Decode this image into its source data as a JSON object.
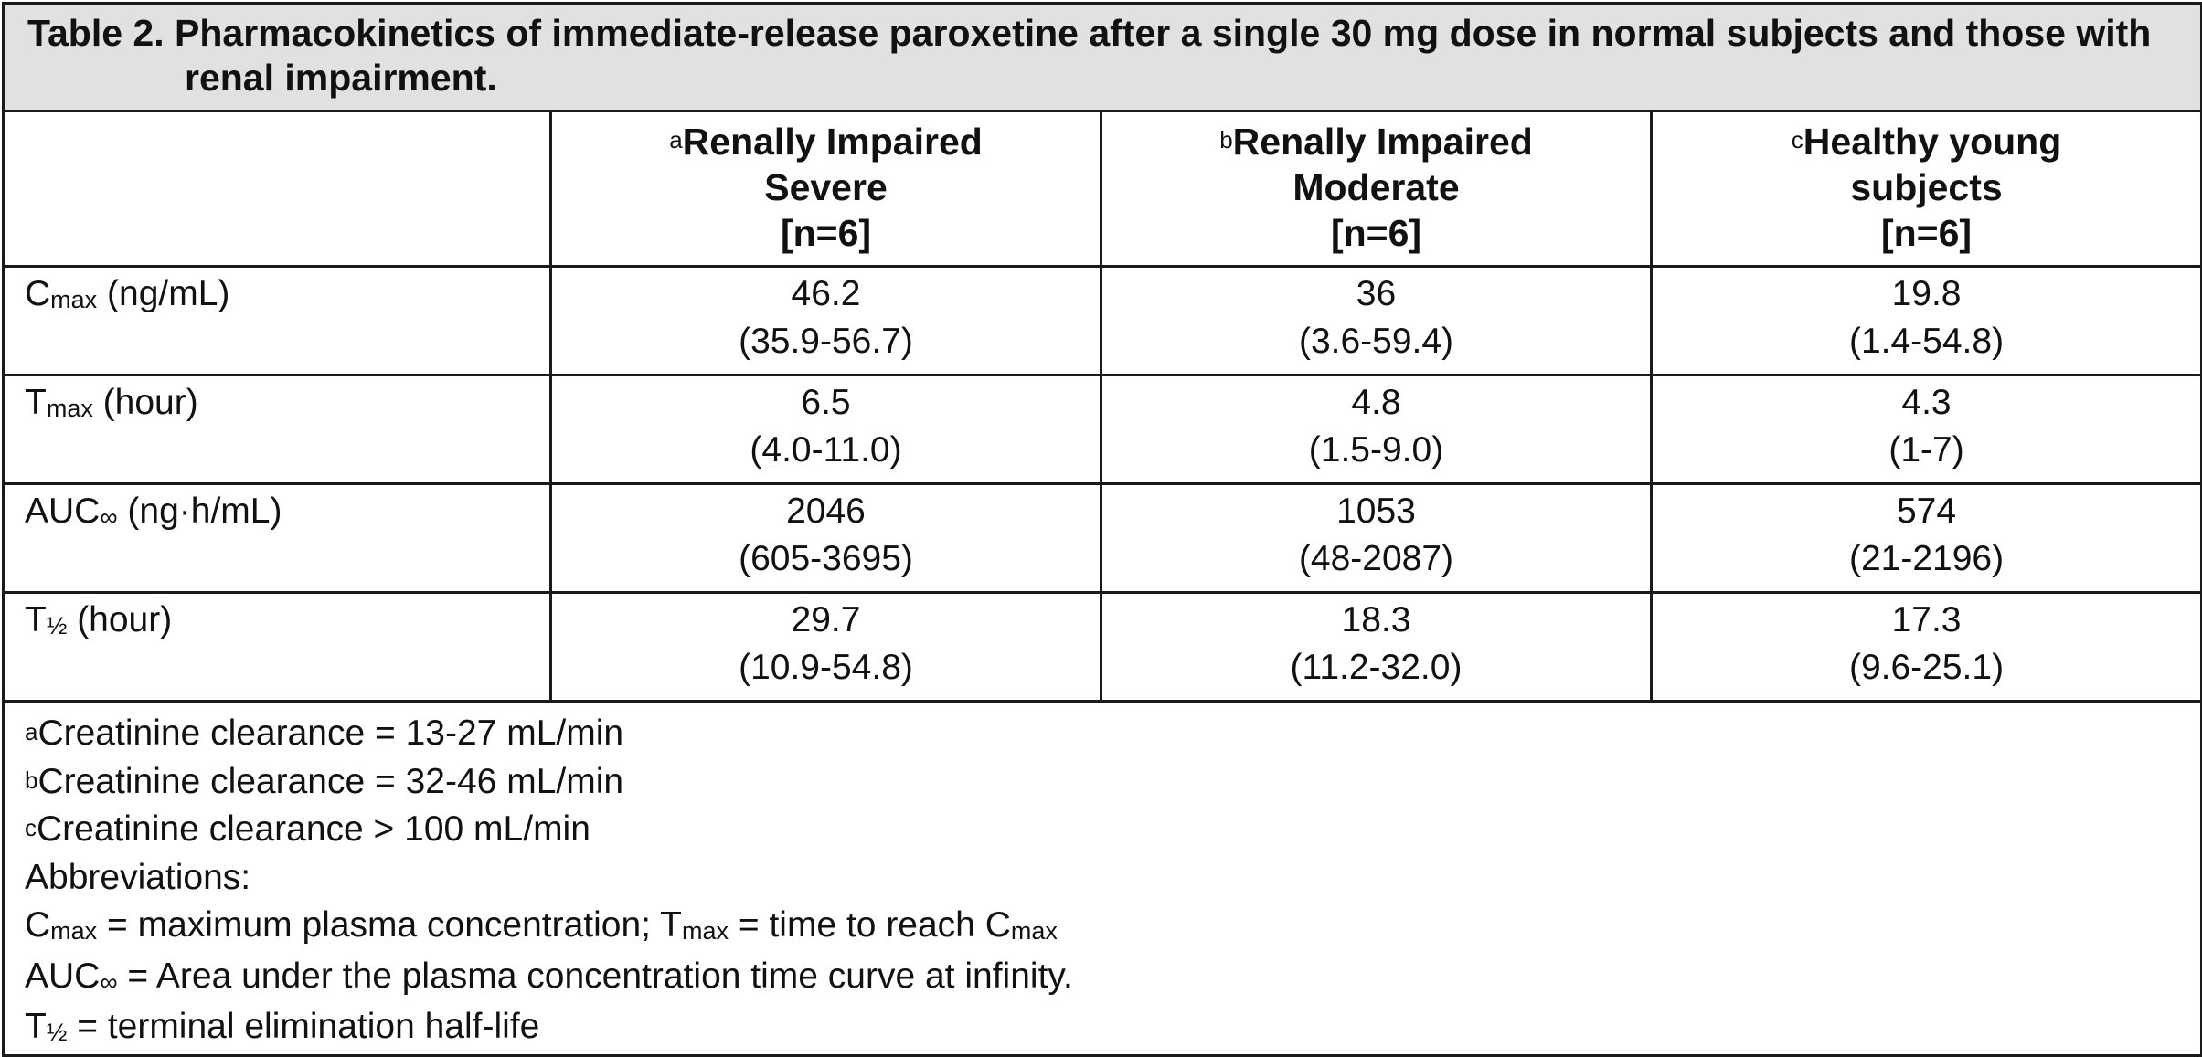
{
  "caption": "Table 2. Pharmacokinetics of immediate-release paroxetine after a single 30 mg dose in normal subjects and those with renal impairment.",
  "columns": [
    {
      "mark": "",
      "lines": []
    },
    {
      "mark": "a",
      "lines": [
        "Renally Impaired",
        "Severe",
        "[n=6]"
      ]
    },
    {
      "mark": "b",
      "lines": [
        "Renally Impaired",
        "Moderate",
        "[n=6]"
      ]
    },
    {
      "mark": "c",
      "lines": [
        "Healthy young",
        "subjects",
        "[n=6]"
      ]
    }
  ],
  "rows": [
    {
      "param": {
        "base": "C",
        "sub": "max",
        "unit": " (ng/mL)"
      },
      "values": [
        {
          "value": "46.2",
          "range": "(35.9-56.7)"
        },
        {
          "value": "36",
          "range": "(3.6-59.4)"
        },
        {
          "value": "19.8",
          "range": "(1.4-54.8)"
        }
      ]
    },
    {
      "param": {
        "base": "T",
        "sub": "max",
        "unit": " (hour)"
      },
      "values": [
        {
          "value": "6.5",
          "range": "(4.0-11.0)"
        },
        {
          "value": "4.8",
          "range": "(1.5-9.0)"
        },
        {
          "value": "4.3",
          "range": "(1-7)"
        }
      ]
    },
    {
      "param": {
        "base": "AUC",
        "sub": "∞",
        "unit": " (ng·h/mL)"
      },
      "values": [
        {
          "value": "2046",
          "range": "(605-3695)"
        },
        {
          "value": "1053",
          "range": "(48-2087)"
        },
        {
          "value": "574",
          "range": "(21-2196)"
        }
      ]
    },
    {
      "param": {
        "base": "T",
        "sub": "½",
        "unit": " (hour)"
      },
      "values": [
        {
          "value": "29.7",
          "range": "(10.9-54.8)"
        },
        {
          "value": "18.3",
          "range": "(11.2-32.0)"
        },
        {
          "value": "17.3",
          "range": "(9.6-25.1)"
        }
      ]
    }
  ],
  "footnotes": {
    "a": {
      "mark": "a",
      "text": "Creatinine clearance = 13-27 mL/min"
    },
    "b": {
      "mark": "b",
      "text": "Creatinine clearance = 32-46 mL/min"
    },
    "c": {
      "mark": "c",
      "text": "Creatinine clearance > 100 mL/min"
    },
    "abbrev_heading": "Abbreviations:",
    "cmax": {
      "base": "C",
      "sub": "max",
      "text": " = maximum plasma concentration; "
    },
    "tmax": {
      "base": "T",
      "sub": "max",
      "text": " = time to reach "
    },
    "tmax_ref": {
      "base": "C",
      "sub": "max"
    },
    "auc": {
      "base": "AUC",
      "sub": "∞",
      "text": " = Area under the plasma concentration time curve at infinity."
    },
    "thalf": {
      "base": "T",
      "sub": "½",
      "text": " = terminal elimination half-life"
    }
  }
}
